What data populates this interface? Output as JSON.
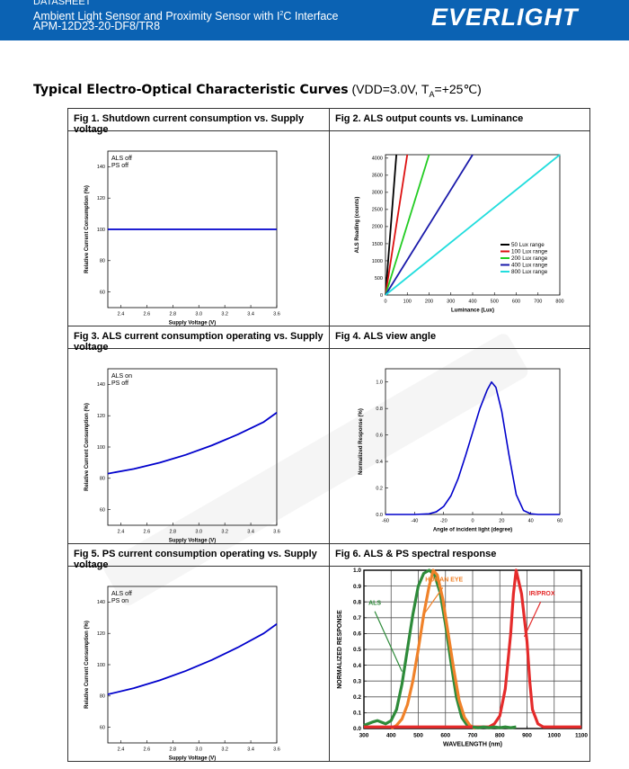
{
  "header": {
    "doc_type": "DATASHEET",
    "product_line": "Ambient Light Sensor and Proximity Sensor with I",
    "sup": "2",
    "product_line_tail": "C Interface",
    "part_number": "APM-12D23-20-DF8/TR8",
    "brand": "EVERLIGHT"
  },
  "section": {
    "title": "Typical Electro-Optical Characteristic Curves",
    "conditions_a": " (VDD=3.0V, T",
    "conditions_sub": "A",
    "conditions_b": "=+25℃)"
  },
  "figures": {
    "fig1": {
      "caption": "Fig 1. Shutdown current consumption vs. Supply voltage"
    },
    "fig2": {
      "caption": "Fig 2. ALS output counts vs. Luminance"
    },
    "fig3": {
      "caption": "Fig 3. ALS current consumption operating vs. Supply voltage"
    },
    "fig4": {
      "caption": "Fig 4. ALS view angle"
    },
    "fig5": {
      "caption": "Fig 5. PS current consumption operating vs. Supply voltage"
    },
    "fig6": {
      "caption": "Fig 6. ALS & PS spectral response"
    }
  },
  "chart_data": [
    {
      "id": "fig1",
      "type": "line",
      "xlabel": "Supply Voltage (V)",
      "ylabel": "Relative Current Consumption (%)",
      "xlim": [
        2.3,
        3.6
      ],
      "ylim": [
        50,
        150
      ],
      "xticks": [
        "2.4",
        "2.6",
        "2.8",
        "3.0",
        "3.2",
        "3.4",
        "3.6"
      ],
      "yticks": [
        "60",
        "80",
        "100",
        "120",
        "140"
      ],
      "annotations": [
        "ALS off",
        "PS off"
      ],
      "series": [
        {
          "color": "#0000cc",
          "x": [
            2.3,
            3.6
          ],
          "y": [
            100,
            100
          ]
        }
      ]
    },
    {
      "id": "fig2",
      "type": "line",
      "xlabel": "Luminance (Lux)",
      "ylabel": "ALS Reading (counts)",
      "xlim": [
        0,
        800
      ],
      "ylim": [
        0,
        4100
      ],
      "xticks": [
        "0",
        "100",
        "200",
        "300",
        "400",
        "500",
        "600",
        "700",
        "800"
      ],
      "yticks": [
        "0",
        "500",
        "1000",
        "1500",
        "2000",
        "2500",
        "3000",
        "3500",
        "4000"
      ],
      "legend_position": "bottom-right",
      "series": [
        {
          "name": "50 Lux range",
          "color": "#000000",
          "x": [
            0,
            50
          ],
          "y": [
            0,
            4100
          ]
        },
        {
          "name": "100 Lux range",
          "color": "#dd1111",
          "x": [
            0,
            100
          ],
          "y": [
            0,
            4100
          ]
        },
        {
          "name": "200 Lux range",
          "color": "#22cc22",
          "x": [
            0,
            200
          ],
          "y": [
            0,
            4100
          ]
        },
        {
          "name": "400 Lux range",
          "color": "#1a1aaa",
          "x": [
            0,
            400
          ],
          "y": [
            0,
            4100
          ]
        },
        {
          "name": "800 Lux range",
          "color": "#22dddd",
          "x": [
            0,
            800
          ],
          "y": [
            0,
            4100
          ]
        }
      ]
    },
    {
      "id": "fig3",
      "type": "line",
      "xlabel": "Supply Voltage (V)",
      "ylabel": "Relative Current Consumption (%)",
      "xlim": [
        2.3,
        3.6
      ],
      "ylim": [
        50,
        150
      ],
      "xticks": [
        "2.4",
        "2.6",
        "2.8",
        "3.0",
        "3.2",
        "3.4",
        "3.6"
      ],
      "yticks": [
        "60",
        "80",
        "100",
        "120",
        "140"
      ],
      "annotations": [
        "ALS on",
        "PS off"
      ],
      "series": [
        {
          "color": "#0000cc",
          "x": [
            2.3,
            2.5,
            2.7,
            2.9,
            3.1,
            3.3,
            3.5,
            3.6
          ],
          "y": [
            83,
            86,
            90,
            95,
            101,
            108,
            116,
            122
          ]
        }
      ]
    },
    {
      "id": "fig4",
      "type": "line",
      "xlabel": "Angle of incident light (degree)",
      "ylabel": "Normalized Response (%)",
      "xlim": [
        -60,
        60
      ],
      "ylim": [
        0,
        1.1
      ],
      "xticks": [
        "-60",
        "-40",
        "-20",
        "0",
        "20",
        "40",
        "60"
      ],
      "yticks": [
        "0.0",
        "0.2",
        "0.4",
        "0.6",
        "0.8",
        "1.0"
      ],
      "series": [
        {
          "color": "#0000cc",
          "x": [
            -60,
            -40,
            -30,
            -25,
            -20,
            -15,
            -10,
            -5,
            0,
            5,
            10,
            13,
            16,
            20,
            25,
            30,
            35,
            40,
            45,
            60
          ],
          "y": [
            0,
            0,
            0.005,
            0.02,
            0.06,
            0.14,
            0.27,
            0.44,
            0.62,
            0.8,
            0.94,
            1.0,
            0.96,
            0.78,
            0.45,
            0.15,
            0.03,
            0.005,
            0,
            0
          ]
        }
      ]
    },
    {
      "id": "fig5",
      "type": "line",
      "xlabel": "Supply Voltage (V)",
      "ylabel": "Relative Current Consumption (%)",
      "xlim": [
        2.3,
        3.6
      ],
      "ylim": [
        50,
        150
      ],
      "xticks": [
        "2.4",
        "2.6",
        "2.8",
        "3.0",
        "3.2",
        "3.4",
        "3.6"
      ],
      "yticks": [
        "60",
        "80",
        "100",
        "120",
        "140"
      ],
      "annotations": [
        "ALS off",
        "PS on"
      ],
      "series": [
        {
          "color": "#0000cc",
          "x": [
            2.3,
            2.5,
            2.7,
            2.9,
            3.1,
            3.3,
            3.5,
            3.6
          ],
          "y": [
            81,
            85,
            90,
            96,
            103,
            111,
            120,
            126
          ]
        }
      ]
    },
    {
      "id": "fig6",
      "type": "line",
      "xlabel": "WAVELENGTH (nm)",
      "ylabel": "NORMALIZED RESPONSE",
      "xlim": [
        300,
        1100
      ],
      "ylim": [
        0,
        1.0
      ],
      "xticks": [
        "300",
        "400",
        "500",
        "600",
        "700",
        "800",
        "900",
        "1000",
        "1100"
      ],
      "yticks": [
        "0.0",
        "0.1",
        "0.2",
        "0.3",
        "0.4",
        "0.5",
        "0.6",
        "0.7",
        "0.8",
        "0.9",
        "1.0"
      ],
      "labels": [
        "HUMAN EYE",
        "ALS",
        "IR/PROX"
      ],
      "series": [
        {
          "name": "ALS",
          "color": "#2e8b3a",
          "x": [
            300,
            330,
            350,
            380,
            400,
            420,
            440,
            460,
            480,
            500,
            520,
            540,
            560,
            580,
            600,
            620,
            640,
            660,
            680,
            700
          ],
          "y": [
            0.02,
            0.04,
            0.05,
            0.03,
            0.05,
            0.12,
            0.28,
            0.5,
            0.72,
            0.9,
            0.98,
            1.0,
            0.97,
            0.86,
            0.66,
            0.42,
            0.2,
            0.07,
            0.02,
            0.01
          ]
        },
        {
          "name": "HUMAN EYE",
          "color": "#f0822a",
          "x": [
            400,
            420,
            440,
            460,
            480,
            500,
            520,
            540,
            555,
            570,
            590,
            610,
            630,
            650,
            670,
            690,
            710
          ],
          "y": [
            0.0,
            0.02,
            0.06,
            0.15,
            0.3,
            0.5,
            0.72,
            0.9,
            1.0,
            0.97,
            0.82,
            0.6,
            0.38,
            0.18,
            0.07,
            0.02,
            0.0
          ]
        },
        {
          "name": "IR/PROX",
          "color": "#e52b2b",
          "x": [
            300,
            700,
            760,
            780,
            800,
            820,
            840,
            850,
            860,
            880,
            900,
            910,
            920,
            940,
            960,
            1100
          ],
          "y": [
            0.01,
            0.01,
            0.01,
            0.03,
            0.08,
            0.25,
            0.6,
            0.85,
            1.0,
            0.85,
            0.55,
            0.3,
            0.12,
            0.03,
            0.01,
            0.01
          ]
        },
        {
          "name": "ALS tail",
          "color": "#2e8b3a",
          "x": [
            700,
            720,
            740,
            760,
            780,
            800,
            820,
            840,
            860
          ],
          "y": [
            0.01,
            0.005,
            0.01,
            0.005,
            0.01,
            0.005,
            0.01,
            0.005,
            0.01
          ]
        }
      ]
    }
  ]
}
